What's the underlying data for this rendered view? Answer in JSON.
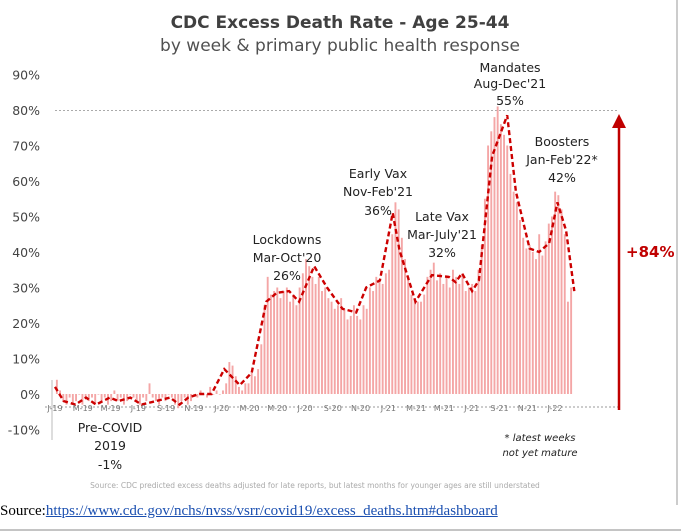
{
  "chart_data": {
    "type": "bar",
    "title": "CDC Excess Death Rate - Age 25-44",
    "subtitle": "by week & primary public health response",
    "ylim": [
      -10,
      90
    ],
    "y_ticks": [
      "-10%",
      "0%",
      "10%",
      "20%",
      "30%",
      "40%",
      "50%",
      "60%",
      "70%",
      "80%",
      "90%"
    ],
    "x_tick_labels": [
      "J-19",
      "M-19",
      "M-19",
      "J-19",
      "S-19",
      "N-19",
      "J-20",
      "M-20",
      "M-20",
      "J-20",
      "S-20",
      "N-20",
      "J-21",
      "M-21",
      "M-21",
      "J-21",
      "S-21",
      "N-21",
      "J-22"
    ],
    "x_range": [
      "2019-01-01",
      "2022-03-01"
    ],
    "grid": false,
    "colors": {
      "bars": "#f4a6a6",
      "trend": "#cc0000",
      "arrow": "#c00000",
      "reference_line": "#aaaaaa"
    },
    "bars": {
      "interval": "weekly",
      "first_week": "2019-01-05",
      "values": [
        4,
        1,
        -2,
        -3,
        -1,
        -3,
        -2,
        0,
        -3,
        -1,
        -2,
        -1,
        -3,
        0,
        -2,
        -1,
        -3,
        -2,
        1,
        -2,
        -1,
        -3,
        -2,
        0,
        -1,
        -2,
        -3,
        -1,
        -2,
        3,
        -1,
        -2,
        -3,
        -1,
        -2,
        0,
        -1,
        -3,
        -4,
        -2,
        -1,
        -3,
        -2,
        0,
        -1,
        1,
        0,
        -1,
        2,
        0,
        1,
        0,
        1,
        3,
        9,
        8,
        5,
        2,
        1,
        3,
        3,
        6,
        5,
        7,
        14,
        25,
        33,
        28,
        29,
        30,
        27,
        29,
        30,
        26,
        28,
        25,
        30,
        34,
        38,
        36,
        33,
        31,
        33,
        29,
        30,
        27,
        26,
        24,
        25,
        27,
        24,
        21,
        22,
        25,
        22,
        21,
        25,
        24,
        30,
        29,
        33,
        32,
        31,
        34,
        35,
        45,
        54,
        52,
        44,
        38,
        33,
        28,
        27,
        26,
        26,
        28,
        33,
        35,
        37,
        32,
        34,
        31,
        33,
        30,
        35,
        33,
        31,
        34,
        29,
        30,
        31,
        29,
        35,
        42,
        55,
        70,
        74,
        78,
        81,
        76,
        73,
        70,
        62,
        57,
        54,
        49,
        44,
        41,
        42,
        40,
        38,
        45,
        39,
        43,
        48,
        50,
        57,
        56,
        52,
        45,
        26,
        30
      ]
    },
    "trend_line": {
      "style": "dashed",
      "points": [
        [
          "2019-01-01",
          2
        ],
        [
          "2019-01-20",
          -2
        ],
        [
          "2019-02-15",
          -3
        ],
        [
          "2019-03-10",
          -1
        ],
        [
          "2019-04-01",
          -3
        ],
        [
          "2019-05-01",
          -1
        ],
        [
          "2019-05-20",
          -2
        ],
        [
          "2019-06-15",
          -1
        ],
        [
          "2019-07-10",
          -3
        ],
        [
          "2019-08-10",
          -2
        ],
        [
          "2019-09-10",
          -1
        ],
        [
          "2019-10-01",
          -3
        ],
        [
          "2019-10-20",
          -1
        ],
        [
          "2019-11-13",
          0
        ],
        [
          "2019-12-10",
          0
        ],
        [
          "2020-01-07",
          7
        ],
        [
          "2020-02-10",
          2.5
        ],
        [
          "2020-03-07",
          6
        ],
        [
          "2020-04-08",
          26
        ],
        [
          "2020-05-01",
          28.5
        ],
        [
          "2020-05-28",
          29
        ],
        [
          "2020-06-19",
          26
        ],
        [
          "2020-07-22",
          36
        ],
        [
          "2020-08-19",
          30
        ],
        [
          "2020-09-22",
          24
        ],
        [
          "2020-10-22",
          23
        ],
        [
          "2020-11-13",
          30
        ],
        [
          "2020-12-13",
          32
        ],
        [
          "2021-01-10",
          51
        ],
        [
          "2021-01-25",
          40.5
        ],
        [
          "2021-03-01",
          26
        ],
        [
          "2021-04-06",
          33.5
        ],
        [
          "2021-05-13",
          33
        ],
        [
          "2021-05-28",
          31.5
        ],
        [
          "2021-06-11",
          34
        ],
        [
          "2021-07-03",
          29
        ],
        [
          "2021-07-18",
          32
        ],
        [
          "2021-08-16",
          67
        ],
        [
          "2021-09-18",
          78.5
        ],
        [
          "2021-10-07",
          57
        ],
        [
          "2021-11-06",
          41
        ],
        [
          "2021-11-27",
          40
        ],
        [
          "2021-12-19",
          42.5
        ],
        [
          "2022-01-06",
          54
        ],
        [
          "2022-01-25",
          46
        ],
        [
          "2022-02-12",
          29
        ]
      ]
    },
    "reference_line_value": 80,
    "annotations": {
      "precovid": [
        "Pre-COVID",
        "2019",
        "-1%"
      ],
      "lockdowns": [
        "Lockdowns",
        "Mar-Oct'20",
        "26%"
      ],
      "early_vax": [
        "Early Vax",
        "Nov-Feb'21",
        "36%"
      ],
      "late_vax": [
        "Late Vax",
        "Mar-July'21",
        "32%"
      ],
      "mandates": [
        "Mandates",
        "Aug-Dec'21",
        "55%"
      ],
      "boosters": [
        "Boosters",
        "Jan-Feb'22*",
        "42%"
      ],
      "increase": "+84%",
      "footnote": [
        "* latest weeks",
        "not yet mature"
      ],
      "source_note": "Source: CDC predicted excess deaths adjusted for late reports, but latest months for younger ages are still understated"
    }
  },
  "footer": {
    "source_label": "Source:",
    "source_link": "https://www.cdc.gov/nchs/nvss/vsrr/covid19/excess_deaths.htm#dashboard"
  }
}
